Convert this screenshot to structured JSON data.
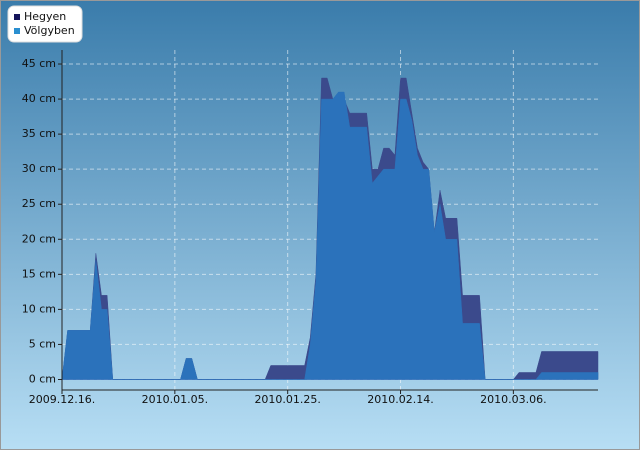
{
  "chart_data": {
    "type": "area",
    "x": [
      "2009-12-16",
      "2009-12-17",
      "2009-12-21",
      "2009-12-22",
      "2009-12-23",
      "2009-12-24",
      "2009-12-25",
      "2010-01-06",
      "2010-01-07",
      "2010-01-08",
      "2010-01-09",
      "2010-01-21",
      "2010-01-22",
      "2010-01-28",
      "2010-01-29",
      "2010-01-30",
      "2010-01-31",
      "2010-02-01",
      "2010-02-02",
      "2010-02-03",
      "2010-02-04",
      "2010-02-05",
      "2010-02-08",
      "2010-02-09",
      "2010-02-10",
      "2010-02-11",
      "2010-02-12",
      "2010-02-13",
      "2010-02-14",
      "2010-02-15",
      "2010-02-16",
      "2010-02-17",
      "2010-02-18",
      "2010-02-19",
      "2010-02-20",
      "2010-02-21",
      "2010-02-22",
      "2010-02-24",
      "2010-02-25",
      "2010-02-28",
      "2010-03-01",
      "2010-03-06",
      "2010-03-07",
      "2010-03-10",
      "2010-03-11",
      "2010-03-21"
    ],
    "series": [
      {
        "name": "Hegyen",
        "color": "#3b4a8c",
        "legend_color": "#14145a",
        "values": [
          0,
          7,
          7,
          18,
          12,
          12,
          0,
          0,
          3,
          3,
          0,
          0,
          2,
          2,
          6,
          15,
          43,
          43,
          40,
          40,
          40,
          38,
          38,
          30,
          30,
          33,
          33,
          32,
          43,
          43,
          38,
          33,
          31,
          30,
          21,
          27,
          23,
          23,
          12,
          12,
          0,
          0,
          1,
          1,
          4,
          4
        ]
      },
      {
        "name": "Völgyben",
        "color": "#2b72bb",
        "legend_color": "#2a8fd0",
        "values": [
          0,
          7,
          7,
          17,
          10,
          10,
          0,
          0,
          3,
          3,
          0,
          0,
          0,
          0,
          5,
          14,
          40,
          40,
          40,
          41,
          41,
          36,
          36,
          28,
          29,
          30,
          30,
          30,
          40,
          40,
          37,
          32,
          30,
          30,
          21,
          25,
          20,
          20,
          8,
          8,
          0,
          0,
          0,
          0,
          1,
          1
        ]
      }
    ],
    "xlim": [
      "2009-12-16",
      "2010-03-21"
    ],
    "xticks": [
      {
        "value": "2009-12-16",
        "label": "2009.12.16."
      },
      {
        "value": "2010-01-05",
        "label": "2010.01.05."
      },
      {
        "value": "2010-01-25",
        "label": "2010.01.25."
      },
      {
        "value": "2010-02-14",
        "label": "2010.02.14."
      },
      {
        "value": "2010-03-06",
        "label": "2010.03.06."
      }
    ],
    "ylim": [
      -1.5,
      47
    ],
    "yticks": [
      {
        "value": 0,
        "label": "0 cm"
      },
      {
        "value": 5,
        "label": "5 cm"
      },
      {
        "value": 10,
        "label": "10 cm"
      },
      {
        "value": 15,
        "label": "15 cm"
      },
      {
        "value": 20,
        "label": "20 cm"
      },
      {
        "value": 25,
        "label": "25 cm"
      },
      {
        "value": 30,
        "label": "30 cm"
      },
      {
        "value": 35,
        "label": "35 cm"
      },
      {
        "value": 40,
        "label": "40 cm"
      },
      {
        "value": 45,
        "label": "45 cm"
      }
    ],
    "grid": true,
    "legend": "top-left"
  }
}
